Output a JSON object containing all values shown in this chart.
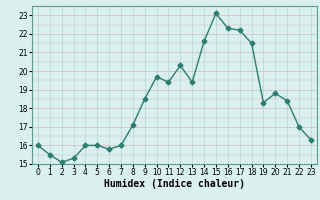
{
  "x": [
    0,
    1,
    2,
    3,
    4,
    5,
    6,
    7,
    8,
    9,
    10,
    11,
    12,
    13,
    14,
    15,
    16,
    17,
    18,
    19,
    20,
    21,
    22,
    23
  ],
  "y": [
    16.0,
    15.5,
    15.1,
    15.3,
    16.0,
    16.0,
    15.8,
    16.0,
    17.1,
    18.5,
    19.7,
    19.4,
    20.3,
    19.4,
    21.6,
    23.1,
    22.3,
    22.2,
    21.5,
    18.3,
    18.8,
    18.4,
    17.0,
    16.3
  ],
  "line_color": "#2e7d72",
  "marker": "D",
  "markersize": 2.5,
  "linewidth": 1.0,
  "bg_color": "#d9f0ee",
  "xlabel": "Humidex (Indice chaleur)",
  "xlim": [
    -0.5,
    23.5
  ],
  "ylim": [
    15,
    23.5
  ],
  "yticks": [
    15,
    16,
    17,
    18,
    19,
    20,
    21,
    22,
    23
  ],
  "xticks": [
    0,
    1,
    2,
    3,
    4,
    5,
    6,
    7,
    8,
    9,
    10,
    11,
    12,
    13,
    14,
    15,
    16,
    17,
    18,
    19,
    20,
    21,
    22,
    23
  ],
  "tick_fontsize": 5.5,
  "xlabel_fontsize": 7.0,
  "hgrid_color": "#d4b8b8",
  "vgrid_color": "#b8d4d4",
  "spine_color": "#5a9a90"
}
